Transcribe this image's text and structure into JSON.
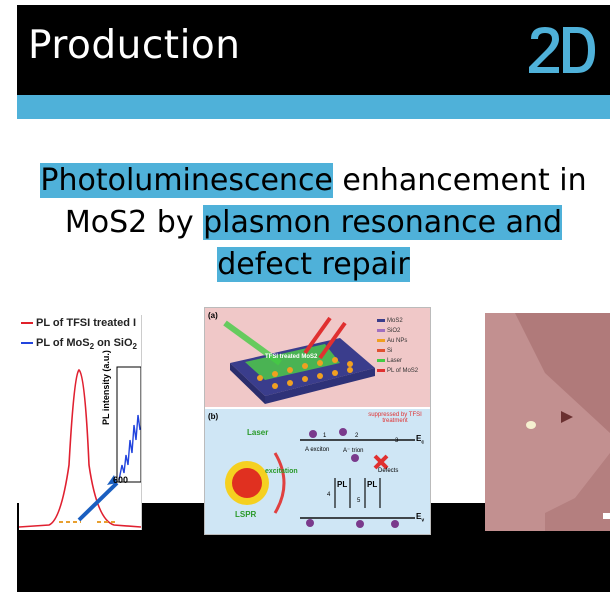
{
  "header": {
    "title": "Production",
    "logo_text": "2D"
  },
  "headline": {
    "part1": "Photoluminescence",
    "part2": " enhancement in",
    "part3": "MoS2 by ",
    "part4": "plasmon resonance and ",
    "part5": "defect repair"
  },
  "figure_left": {
    "legend1": "PL of TFSI treated I",
    "legend2": "PL of MoS",
    "legend2_sub": "2",
    "legend2_tail": " on SiO",
    "legend2_sub2": "2",
    "inset_ylabel": "PL intensity (a.u.)",
    "inset_xtick": "600"
  },
  "figure_middle": {
    "panel_a": "(a)",
    "panel_b": "(b)",
    "legend": [
      "MoS2",
      "SiO2",
      "Au NPs",
      "Si",
      "Laser",
      "PL of MoS2"
    ],
    "sample_label": "TFSI treated MoS2",
    "laser": "Laser",
    "excitation": "excitation",
    "lspr": "LSPR",
    "a_exciton": "A exciton",
    "a_trion": "A⁻ trion",
    "defects": "Defects",
    "suppressed": "suppressed by TFSI treatment",
    "ec": "E",
    "ec_sub": "c",
    "ev": "E",
    "ev_sub": "v",
    "pl1": "PL",
    "pl2": "PL",
    "n1": "1",
    "n2": "2",
    "n3": "3",
    "n4": "4",
    "n5": "5"
  },
  "colors": {
    "accent": "#4fb1d9",
    "header_bg": "#000000",
    "flake": "#b98686"
  }
}
